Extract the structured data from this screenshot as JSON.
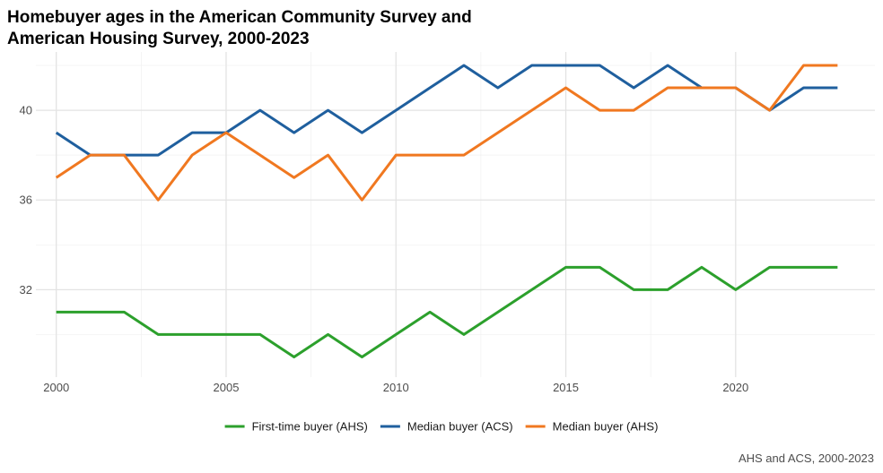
{
  "chart_data": {
    "type": "line",
    "title_lines": [
      "Homebuyer ages in the American Community Survey and",
      "American Housing Survey, 2000-2023"
    ],
    "caption": "AHS and ACS, 2000-2023",
    "xlabel": "",
    "ylabel": "",
    "x": [
      2000,
      2001,
      2002,
      2003,
      2004,
      2005,
      2006,
      2007,
      2008,
      2009,
      2010,
      2011,
      2012,
      2013,
      2014,
      2015,
      2016,
      2017,
      2018,
      2019,
      2020,
      2021,
      2022,
      2023
    ],
    "xlim": [
      1999.4,
      2024.1
    ],
    "ylim": [
      28.1,
      42.6
    ],
    "x_ticks": [
      2000,
      2005,
      2010,
      2015,
      2020
    ],
    "x_tick_labels": [
      "2000",
      "2005",
      "2010",
      "2015",
      "2020"
    ],
    "y_ticks": [
      32,
      36,
      40
    ],
    "y_tick_labels": [
      "32",
      "36",
      "40"
    ],
    "grid": true,
    "legend_position": "bottom",
    "series": [
      {
        "name": "First-time buyer (AHS)",
        "color": "#2ca02c",
        "values": [
          31,
          31,
          31,
          30,
          30,
          30,
          30,
          29,
          30,
          29,
          30,
          31,
          30,
          31,
          32,
          33,
          33,
          32,
          32,
          33,
          32,
          33,
          33,
          33
        ]
      },
      {
        "name": "Median buyer (ACS)",
        "color": "#1f5f9e",
        "values": [
          39,
          38,
          38,
          38,
          39,
          39,
          40,
          39,
          40,
          39,
          40,
          41,
          42,
          41,
          42,
          42,
          42,
          41,
          42,
          41,
          41,
          40,
          41,
          41
        ]
      },
      {
        "name": "Median buyer (AHS)",
        "color": "#f07820",
        "values": [
          37,
          38,
          38,
          36,
          38,
          39,
          38,
          37,
          38,
          36,
          38,
          38,
          38,
          39,
          40,
          41,
          40,
          40,
          41,
          41,
          41,
          40,
          42,
          42
        ]
      }
    ]
  }
}
